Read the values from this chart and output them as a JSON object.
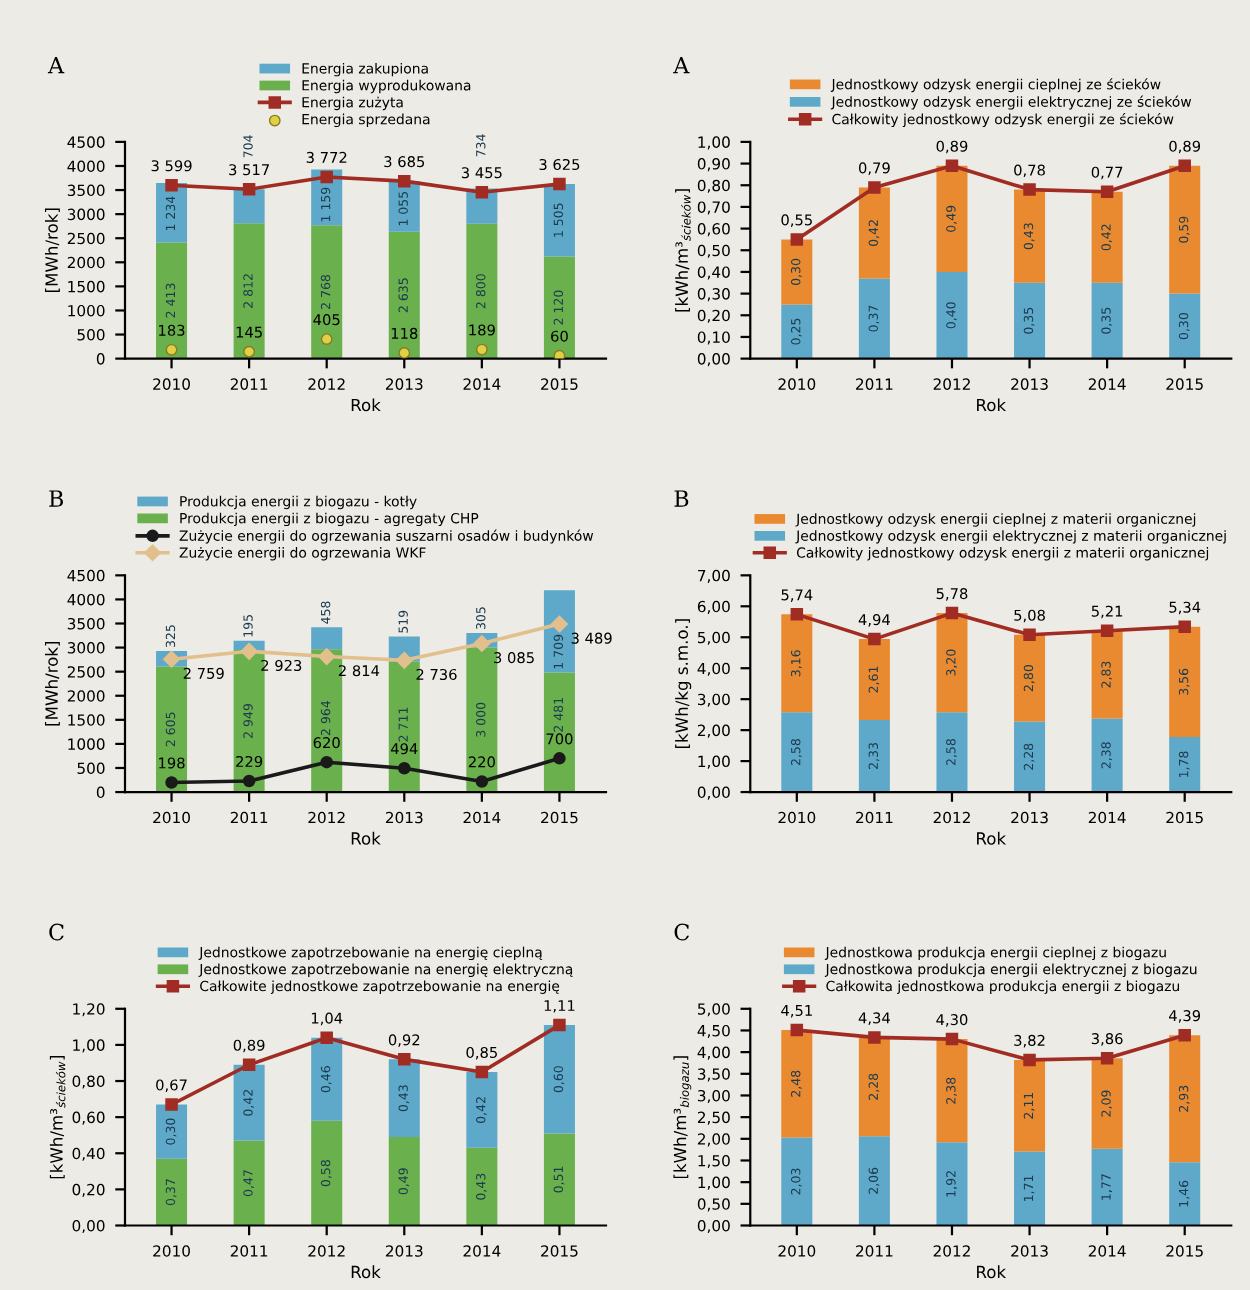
{
  "chart_data": [
    {
      "type": "bar",
      "stacked": true,
      "title": "A",
      "xlabel": "Rok",
      "ylabel": "[MWh/rok]",
      "legend": "top",
      "categories": [
        "2010",
        "2011",
        "2012",
        "2013",
        "2014",
        "2015"
      ],
      "ylim": [
        0,
        4500
      ],
      "yticks": [
        0,
        500,
        1000,
        1500,
        2000,
        2500,
        3000,
        3500,
        4000,
        4500
      ],
      "series": [
        {
          "name": "Energia wyprodukowana",
          "type": "bar",
          "color": "#6ab04c",
          "values": [
            2413,
            2812,
            2768,
            2635,
            2800,
            2120
          ],
          "value_labels": [
            "2 413",
            "2 812",
            "2 768",
            "2 635",
            "2 800",
            "2 120"
          ]
        },
        {
          "name": "Energia zakupiona",
          "type": "bar",
          "color": "#5ea9c9",
          "values": [
            1234,
            704,
            1159,
            1055,
            734,
            1505
          ],
          "value_labels": [
            "1 234",
            "704",
            "1 159",
            "1 055",
            "734",
            "1 505"
          ]
        },
        {
          "name": "Energia zużyta",
          "type": "line",
          "color": "#a02c24",
          "marker": "square",
          "values": [
            3599,
            3517,
            3772,
            3685,
            3455,
            3625
          ],
          "value_labels": [
            "3 599",
            "3 517",
            "3 772",
            "3 685",
            "3 455",
            "3 625"
          ]
        },
        {
          "name": "Energia sprzedana",
          "type": "scatter",
          "color": "#e0d048",
          "marker": "circle",
          "values": [
            183,
            145,
            405,
            118,
            189,
            60
          ],
          "value_labels": [
            "183",
            "145",
            "405",
            "118",
            "189",
            "60"
          ]
        }
      ]
    },
    {
      "type": "bar",
      "stacked": true,
      "title": "A",
      "xlabel": "Rok",
      "ylabel": "[kWh/m³$_{ścieków}$]",
      "legend": "top",
      "categories": [
        "2010",
        "2011",
        "2012",
        "2013",
        "2014",
        "2015"
      ],
      "ylim": [
        0,
        1.0
      ],
      "yticks": [
        {
          "value": 0,
          "label": "0,00"
        },
        {
          "value": 0.1,
          "label": "0,10"
        },
        {
          "value": 0.2,
          "label": "0,20"
        },
        {
          "value": 0.3,
          "label": "0,30"
        },
        {
          "value": 0.4,
          "label": "0,40"
        },
        {
          "value": 0.5,
          "label": "0,50"
        },
        {
          "value": 0.6,
          "label": "0,60"
        },
        {
          "value": 0.7,
          "label": "0,70"
        },
        {
          "value": 0.8,
          "label": "0,80"
        },
        {
          "value": 0.9,
          "label": "0,90"
        },
        {
          "value": 1.0,
          "label": "1,00"
        }
      ],
      "series": [
        {
          "name": "Jednostkowy odzysk energii elektrycznej ze ścieków",
          "type": "bar",
          "color": "#5ea9c9",
          "values": [
            0.25,
            0.37,
            0.4,
            0.35,
            0.35,
            0.3
          ],
          "value_labels": [
            "0,25",
            "0,37",
            "0,40",
            "0,35",
            "0,35",
            "0,30"
          ]
        },
        {
          "name": "Jednostkowy odzysk energii cieplnej ze ścieków",
          "type": "bar",
          "color": "#ea8a30",
          "values": [
            0.3,
            0.42,
            0.49,
            0.43,
            0.42,
            0.59
          ],
          "value_labels": [
            "0,30",
            "0,42",
            "0,49",
            "0,43",
            "0,42",
            "0,59"
          ]
        },
        {
          "name": "Całkowity jednostkowy odzysk energii ze ścieków",
          "type": "line",
          "color": "#a02c24",
          "marker": "square",
          "values": [
            0.55,
            0.79,
            0.89,
            0.78,
            0.77,
            0.89
          ],
          "value_labels": [
            "0,55",
            "0,79",
            "0,89",
            "0,78",
            "0,77",
            "0,89"
          ]
        }
      ]
    },
    {
      "type": "bar",
      "stacked": true,
      "title": "B",
      "xlabel": "Rok",
      "ylabel": "[MWh/rok]",
      "legend": "top",
      "categories": [
        "2010",
        "2011",
        "2012",
        "2013",
        "2014",
        "2015"
      ],
      "ylim": [
        0,
        4500
      ],
      "yticks": [
        0,
        500,
        1000,
        1500,
        2000,
        2500,
        3000,
        3500,
        4000,
        4500
      ],
      "series": [
        {
          "name": "Produkcja energii z biogazu - agregaty CHP",
          "type": "bar",
          "color": "#6ab04c",
          "values": [
            2605,
            2949,
            2964,
            2711,
            3000,
            2481
          ],
          "value_labels": [
            "2 605",
            "2 949",
            "2 964",
            "2 711",
            "3 000",
            "2 481"
          ]
        },
        {
          "name": "Produkcja energii z biogazu - kotły",
          "type": "bar",
          "color": "#5ea9c9",
          "values": [
            325,
            195,
            458,
            519,
            305,
            1709
          ],
          "value_labels": [
            "325",
            "195",
            "458",
            "519",
            "305",
            "1 709"
          ]
        },
        {
          "name": "Zużycie energii do ogrzewania suszarni osadów i budynków",
          "type": "line",
          "color": "#1a1a1a",
          "marker": "circle",
          "values": [
            198,
            229,
            620,
            494,
            220,
            700
          ],
          "value_labels": [
            "198",
            "229",
            "620",
            "494",
            "220",
            "700"
          ]
        },
        {
          "name": "Zużycie energii do ogrzewania WKF",
          "type": "line",
          "color": "#e2c08e",
          "marker": "diamond",
          "values": [
            2759,
            2923,
            2814,
            2736,
            3085,
            3489
          ],
          "value_labels": [
            "2 759",
            "2 923",
            "2 814",
            "2 736",
            "3 085",
            "3 489"
          ]
        }
      ]
    },
    {
      "type": "bar",
      "stacked": true,
      "title": "B",
      "xlabel": "Rok",
      "ylabel": "[kWh/kg s.m.o.]",
      "legend": "top",
      "categories": [
        "2010",
        "2011",
        "2012",
        "2013",
        "2014",
        "2015"
      ],
      "ylim": [
        0,
        7
      ],
      "yticks": [
        {
          "value": 0,
          "label": "0,00"
        },
        {
          "value": 1,
          "label": "1,00"
        },
        {
          "value": 2,
          "label": "2,00"
        },
        {
          "value": 3,
          "label": "3,00"
        },
        {
          "value": 4,
          "label": "4,00"
        },
        {
          "value": 5,
          "label": "5,00"
        },
        {
          "value": 6,
          "label": "6,00"
        },
        {
          "value": 7,
          "label": "7,00"
        }
      ],
      "series": [
        {
          "name": "Jednostkowy odzysk energii elektrycznej z materii organicznej",
          "type": "bar",
          "color": "#5ea9c9",
          "values": [
            2.58,
            2.33,
            2.58,
            2.28,
            2.38,
            1.78
          ],
          "value_labels": [
            "2,58",
            "2,33",
            "2,58",
            "2,28",
            "2,38",
            "1,78"
          ]
        },
        {
          "name": "Jednostkowy odzysk energii cieplnej z materii organicznej",
          "type": "bar",
          "color": "#ea8a30",
          "values": [
            3.16,
            2.61,
            3.2,
            2.8,
            2.83,
            3.56
          ],
          "value_labels": [
            "3,16",
            "2,61",
            "3,20",
            "2,80",
            "2,83",
            "3,56"
          ]
        },
        {
          "name": "Całkowity jednostkowy odzysk energii z materii organicznej",
          "type": "line",
          "color": "#a02c24",
          "marker": "square",
          "values": [
            5.74,
            4.94,
            5.78,
            5.08,
            5.21,
            5.34
          ],
          "value_labels": [
            "5,74",
            "4,94",
            "5,78",
            "5,08",
            "5,21",
            "5,34"
          ]
        }
      ]
    },
    {
      "type": "bar",
      "stacked": true,
      "title": "C",
      "xlabel": "Rok",
      "ylabel": "[kWh/m³$_{ścieków}$]",
      "legend": "top",
      "categories": [
        "2010",
        "2011",
        "2012",
        "2013",
        "2014",
        "2015"
      ],
      "ylim": [
        0,
        1.2
      ],
      "yticks": [
        {
          "value": 0,
          "label": "0,00"
        },
        {
          "value": 0.2,
          "label": "0,20"
        },
        {
          "value": 0.4,
          "label": "0,40"
        },
        {
          "value": 0.6,
          "label": "0,60"
        },
        {
          "value": 0.8,
          "label": "0,80"
        },
        {
          "value": 1.0,
          "label": "1,00"
        },
        {
          "value": 1.2,
          "label": "1,20"
        }
      ],
      "series": [
        {
          "name": "Jednostkowe zapotrzebowanie na energię elektryczną",
          "type": "bar",
          "color": "#6ab04c",
          "values": [
            0.37,
            0.47,
            0.58,
            0.49,
            0.43,
            0.51
          ],
          "value_labels": [
            "0,37",
            "0,47",
            "0,58",
            "0,49",
            "0,43",
            "0,51"
          ]
        },
        {
          "name": "Jednostkowe zapotrzebowanie na energię cieplną",
          "type": "bar",
          "color": "#5ea9c9",
          "values": [
            0.3,
            0.42,
            0.46,
            0.43,
            0.42,
            0.6
          ],
          "value_labels": [
            "0,30",
            "0,42",
            "0,46",
            "0,43",
            "0,42",
            "0,60"
          ]
        },
        {
          "name": "Całkowite jednostkowe zapotrzebowanie na energię",
          "type": "line",
          "color": "#a02c24",
          "marker": "square",
          "values": [
            0.67,
            0.89,
            1.04,
            0.92,
            0.85,
            1.11
          ],
          "value_labels": [
            "0,67",
            "0,89",
            "1,04",
            "0,92",
            "0,85",
            "1,11"
          ]
        }
      ]
    },
    {
      "type": "bar",
      "stacked": true,
      "title": "C",
      "xlabel": "Rok",
      "ylabel": "[kWh/m³$_{biogazu}$]",
      "legend": "top",
      "categories": [
        "2010",
        "2011",
        "2012",
        "2013",
        "2014",
        "2015"
      ],
      "ylim": [
        0,
        5
      ],
      "yticks": [
        {
          "value": 0,
          "label": "0,00"
        },
        {
          "value": 0.5,
          "label": "0,50"
        },
        {
          "value": 1,
          "label": "1,00"
        },
        {
          "value": 1.5,
          "label": "1,50"
        },
        {
          "value": 2,
          "label": "2,00"
        },
        {
          "value": 2.5,
          "label": "2,50"
        },
        {
          "value": 3,
          "label": "3,00"
        },
        {
          "value": 3.5,
          "label": "3,50"
        },
        {
          "value": 4,
          "label": "4,00"
        },
        {
          "value": 4.5,
          "label": "4,50"
        },
        {
          "value": 5,
          "label": "5,00"
        }
      ],
      "series": [
        {
          "name": "Jednostkowa produkcja energii elektrycznej z biogazu",
          "type": "bar",
          "color": "#5ea9c9",
          "values": [
            2.03,
            2.06,
            1.92,
            1.71,
            1.77,
            1.46
          ],
          "value_labels": [
            "2,03",
            "2,06",
            "1,92",
            "1,71",
            "1,77",
            "1,46"
          ]
        },
        {
          "name": "Jednostkowa produkcja energii cieplnej z biogazu",
          "type": "bar",
          "color": "#ea8a30",
          "values": [
            2.48,
            2.28,
            2.38,
            2.11,
            2.09,
            2.93
          ],
          "value_labels": [
            "2,48",
            "2,28",
            "2,38",
            "2,11",
            "2,09",
            "2,93"
          ]
        },
        {
          "name": "Całkowita jednostkowa produkcja energii z biogazu",
          "type": "line",
          "color": "#a02c24",
          "marker": "square",
          "values": [
            4.51,
            4.34,
            4.3,
            3.82,
            3.86,
            4.39
          ],
          "value_labels": [
            "4,51",
            "4,34",
            "4,30",
            "3,82",
            "3,86",
            "4,39"
          ]
        }
      ]
    }
  ]
}
